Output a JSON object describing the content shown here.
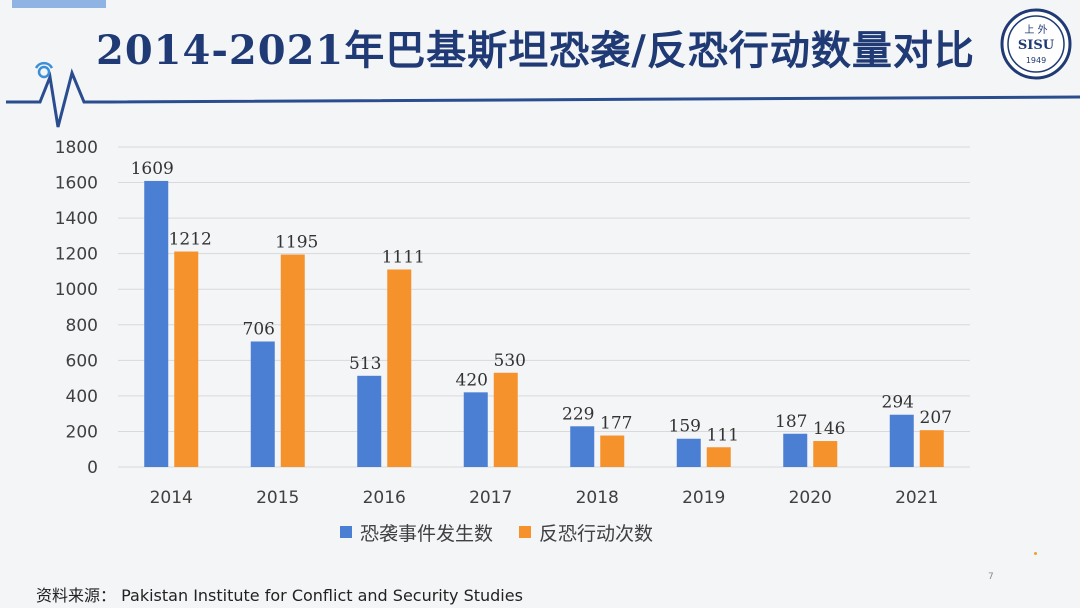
{
  "slide": {
    "title": "2014-2021年巴基斯坦恐袭/反恐行动数量对比",
    "source_label": "资料来源：",
    "source_text": "Pakistan Institute for Conflict and Security Studies",
    "page_number": "7"
  },
  "logo": {
    "top_text": "上 外",
    "middle_text": "SISU",
    "year": "1949"
  },
  "colors": {
    "title": "#1f3a74",
    "accent_line": "#2a4d8f",
    "series_1": "#4a7fd4",
    "series_2": "#f5922b",
    "grid": "#d9d9d9"
  },
  "chart_data": {
    "type": "bar",
    "categories": [
      "2014",
      "2015",
      "2016",
      "2017",
      "2018",
      "2019",
      "2020",
      "2021"
    ],
    "series": [
      {
        "name": "恐袭事件发生数",
        "values": [
          1609,
          706,
          513,
          420,
          229,
          159,
          187,
          294
        ]
      },
      {
        "name": "反恐行动次数",
        "values": [
          1212,
          1195,
          1111,
          530,
          177,
          111,
          146,
          207
        ]
      }
    ],
    "yticks": [
      0,
      200,
      400,
      600,
      800,
      1000,
      1200,
      1400,
      1600,
      1800
    ],
    "ylim": [
      0,
      1800
    ],
    "grid": true,
    "legend": "bottom"
  }
}
